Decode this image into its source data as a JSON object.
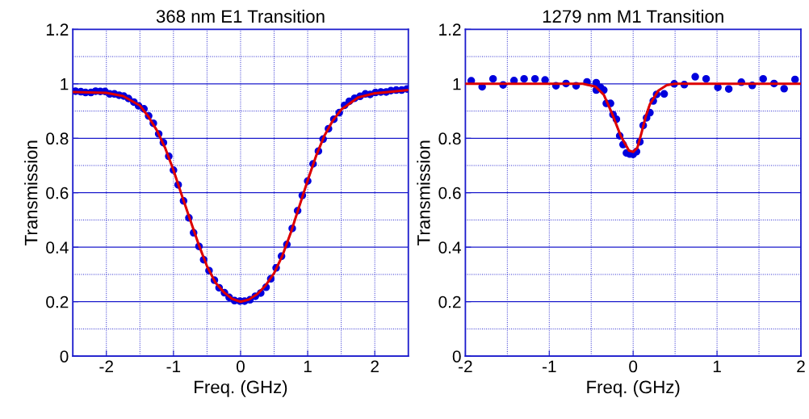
{
  "chart_data": [
    {
      "type": "scatter",
      "title": "368 nm E1 Transition",
      "xlabel": "Freq. (GHz)",
      "ylabel": "Transmission",
      "xlim": [
        -2.5,
        2.5
      ],
      "xticks": [
        -2,
        -1,
        0,
        1,
        2
      ],
      "ylim": [
        0,
        1.2
      ],
      "yticks": [
        0,
        0.2,
        0.4,
        0.6,
        0.8,
        1,
        1.2
      ],
      "grid": true,
      "series": [
        {
          "marker": "circle",
          "color": "#0000dd",
          "x": [
            -2.46,
            -2.38,
            -2.31,
            -2.23,
            -2.16,
            -2.09,
            -2.02,
            -1.95,
            -1.88,
            -1.81,
            -1.74,
            -1.67,
            -1.59,
            -1.52,
            -1.44,
            -1.37,
            -1.3,
            -1.22,
            -1.15,
            -1.07,
            -1.0,
            -0.93,
            -0.85,
            -0.77,
            -0.7,
            -0.62,
            -0.55,
            -0.47,
            -0.39,
            -0.32,
            -0.24,
            -0.17,
            -0.09,
            -0.01,
            0.06,
            0.14,
            0.22,
            0.3,
            0.38,
            0.45,
            0.53,
            0.61,
            0.69,
            0.77,
            0.85,
            0.92,
            1.0,
            1.08,
            1.16,
            1.23,
            1.31,
            1.39,
            1.47,
            1.55,
            1.62,
            1.7,
            1.78,
            1.86,
            1.93,
            2.01,
            2.09,
            2.17,
            2.24,
            2.32,
            2.4,
            2.48
          ],
          "values": [
            0.973,
            0.971,
            0.968,
            0.968,
            0.973,
            0.972,
            0.972,
            0.963,
            0.963,
            0.958,
            0.955,
            0.946,
            0.933,
            0.919,
            0.908,
            0.882,
            0.855,
            0.816,
            0.784,
            0.734,
            0.683,
            0.629,
            0.57,
            0.508,
            0.453,
            0.403,
            0.354,
            0.314,
            0.279,
            0.251,
            0.233,
            0.216,
            0.204,
            0.202,
            0.202,
            0.207,
            0.22,
            0.232,
            0.253,
            0.284,
            0.324,
            0.367,
            0.41,
            0.469,
            0.534,
            0.59,
            0.643,
            0.706,
            0.753,
            0.797,
            0.835,
            0.87,
            0.894,
            0.921,
            0.936,
            0.947,
            0.954,
            0.963,
            0.961,
            0.968,
            0.97,
            0.97,
            0.975,
            0.977,
            0.977,
            0.981
          ]
        },
        {
          "type": "line",
          "color": "#dd0000",
          "marker": "none",
          "line_style": "solid",
          "x": [
            -2.5,
            -2.0,
            -1.75,
            -1.5,
            -1.375,
            -1.25,
            -1.125,
            -1.0,
            -0.875,
            -0.75,
            -0.625,
            -0.5,
            -0.375,
            -0.25,
            -0.125,
            0,
            0.125,
            0.25,
            0.375,
            0.5,
            0.625,
            0.75,
            0.875,
            1.0,
            1.125,
            1.25,
            1.375,
            1.5,
            1.75,
            2.0,
            2.5
          ],
          "values": [
            0.97,
            0.967,
            0.955,
            0.92,
            0.88,
            0.83,
            0.765,
            0.683,
            0.59,
            0.5,
            0.41,
            0.33,
            0.27,
            0.235,
            0.21,
            0.2,
            0.208,
            0.228,
            0.26,
            0.305,
            0.37,
            0.455,
            0.55,
            0.645,
            0.735,
            0.81,
            0.865,
            0.905,
            0.95,
            0.965,
            0.977
          ]
        }
      ]
    },
    {
      "type": "scatter",
      "title": "1279 nm M1 Transition",
      "xlabel": "Freq. (GHz)",
      "ylabel": "Transmission",
      "xlim": [
        -2,
        2
      ],
      "xticks": [
        -2,
        -1,
        0,
        1,
        2
      ],
      "ylim": [
        0,
        1.2
      ],
      "yticks": [
        0,
        0.2,
        0.4,
        0.6,
        0.8,
        1,
        1.2
      ],
      "grid": true,
      "series": [
        {
          "marker": "circle",
          "color": "#0000dd",
          "x": [
            -1.93,
            -1.8,
            -1.67,
            -1.55,
            -1.42,
            -1.3,
            -1.17,
            -1.05,
            -0.92,
            -0.8,
            -0.68,
            -0.55,
            -0.44,
            -0.44,
            -0.39,
            -0.35,
            -0.32,
            -0.27,
            -0.24,
            -0.2,
            -0.16,
            -0.12,
            -0.08,
            -0.04,
            0.0,
            0.04,
            0.08,
            0.12,
            0.16,
            0.2,
            0.24,
            0.28,
            0.37,
            0.49,
            0.61,
            0.74,
            0.87,
            1.01,
            1.14,
            1.29,
            1.42,
            1.55,
            1.68,
            1.8,
            1.93
          ],
          "values": [
            1.011,
            0.989,
            1.018,
            0.996,
            1.012,
            1.018,
            1.018,
            1.014,
            0.993,
            1.001,
            0.993,
            1.007,
            1.004,
            0.977,
            0.987,
            0.977,
            0.928,
            0.928,
            0.887,
            0.87,
            0.809,
            0.777,
            0.746,
            0.742,
            0.741,
            0.751,
            0.787,
            0.847,
            0.875,
            0.894,
            0.937,
            0.961,
            0.963,
            1.0,
            0.997,
            1.026,
            1.018,
            0.987,
            0.981,
            1.006,
            0.994,
            1.018,
            1.001,
            0.982,
            1.016
          ]
        },
        {
          "type": "line",
          "color": "#dd0000",
          "marker": "none",
          "line_style": "solid",
          "x": [
            -2,
            -0.6,
            -0.45,
            -0.35,
            -0.25,
            -0.15,
            -0.05,
            0,
            0.05,
            0.1,
            0.15,
            0.2,
            0.3,
            0.4,
            0.5,
            2
          ],
          "values": [
            1.0,
            1.0,
            0.99,
            0.96,
            0.89,
            0.81,
            0.755,
            0.75,
            0.765,
            0.82,
            0.88,
            0.925,
            0.975,
            0.995,
            1.0,
            1.0
          ]
        }
      ]
    }
  ]
}
